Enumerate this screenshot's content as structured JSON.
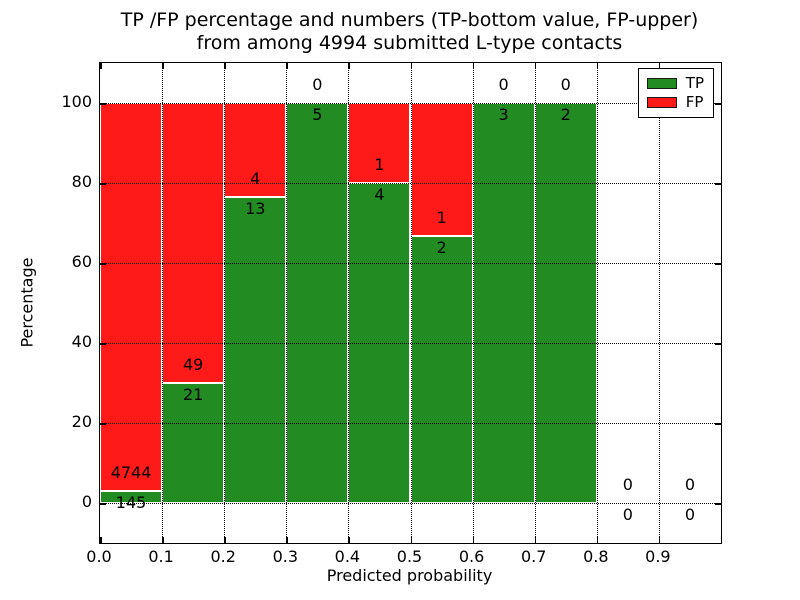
{
  "title": {
    "line1": "TP /FP percentage and numbers (TP-bottom value, FP-upper)",
    "line2": "from among 4994 submitted L-type contacts"
  },
  "legend": {
    "entries": [
      {
        "label": "TP",
        "color": "#228b22"
      },
      {
        "label": "FP",
        "color": "#ff1a1a"
      }
    ]
  },
  "chart_data": {
    "type": "bar",
    "stacked": true,
    "title": "TP /FP percentage and numbers (TP-bottom value, FP-upper) from among 4994 submitted L-type contacts",
    "xlabel": "Predicted probability",
    "ylabel": "Percentage",
    "xlim": [
      0.0,
      1.0
    ],
    "ylim": [
      -10,
      110
    ],
    "grid": "dotted",
    "legend_position": "upper right",
    "total_contacts": 4994,
    "bin_edges": [
      0.0,
      0.1,
      0.2,
      0.3,
      0.4,
      0.5,
      0.6,
      0.7,
      0.8,
      0.9,
      1.0
    ],
    "xtick_labels": [
      "0.0",
      "0.1",
      "0.2",
      "0.3",
      "0.4",
      "0.5",
      "0.6",
      "0.7",
      "0.8",
      "0.9"
    ],
    "ytick_values": [
      0,
      20,
      40,
      60,
      80,
      100
    ],
    "series": [
      {
        "name": "TP",
        "color": "#228b22",
        "counts": [
          145,
          21,
          13,
          5,
          4,
          2,
          3,
          2,
          0,
          0
        ]
      },
      {
        "name": "FP",
        "color": "#ff1a1a",
        "counts": [
          4744,
          49,
          4,
          0,
          1,
          1,
          0,
          0,
          0,
          0
        ]
      }
    ],
    "tp_percentages": [
      2.97,
      30.0,
      76.47,
      100.0,
      80.0,
      66.67,
      100.0,
      100.0,
      null,
      null
    ]
  }
}
